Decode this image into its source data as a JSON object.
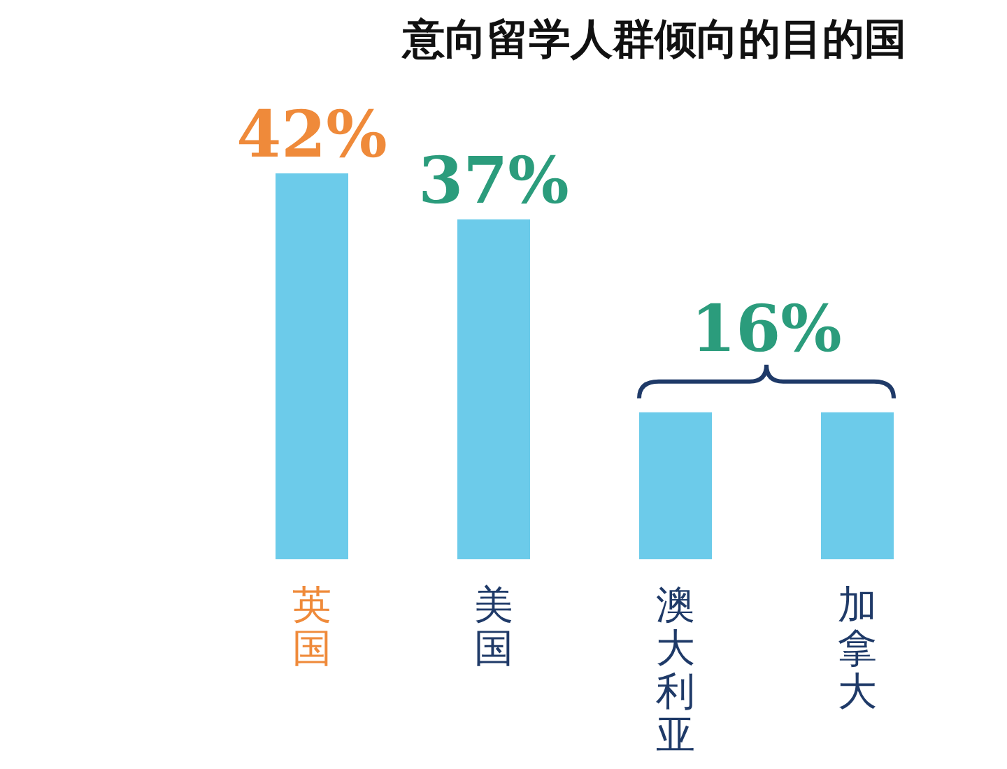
{
  "chart_data": {
    "type": "bar",
    "title": "意向留学人群倾向的目的国",
    "categories": [
      "英国",
      "美国",
      "澳大利亚",
      "加拿大"
    ],
    "values": [
      42,
      37,
      16,
      16
    ],
    "color": "#6ccbea",
    "value_labels": [
      "42%",
      "37%",
      null,
      null
    ],
    "annotations": [
      "16%"
    ]
  }
}
